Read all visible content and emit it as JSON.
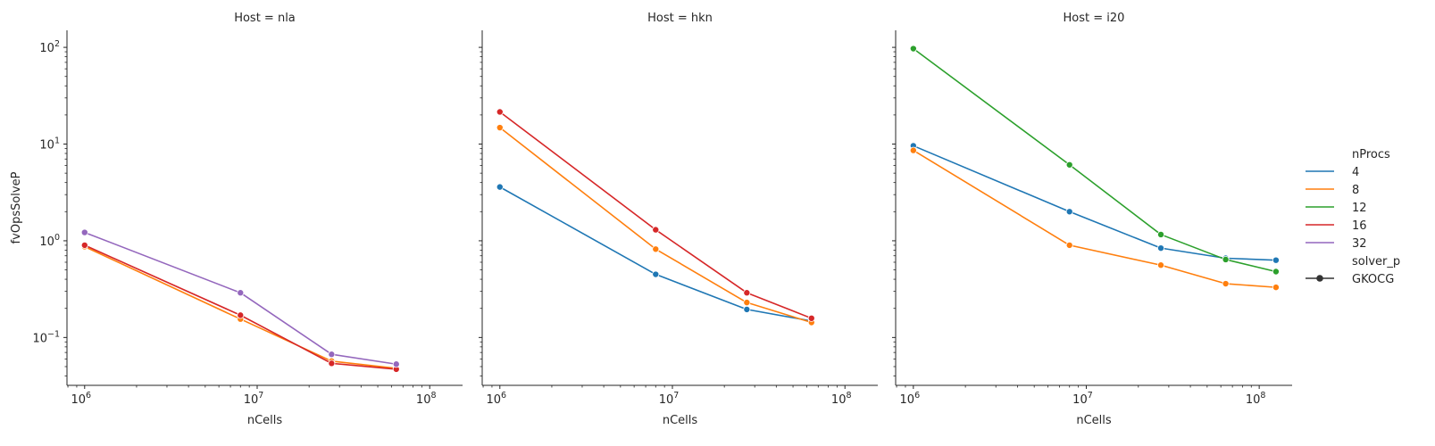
{
  "chart_data": {
    "type": "line",
    "x_scale": "log",
    "y_scale": "log",
    "xlabel": "nCells",
    "ylabel": "fvOpsSolveP",
    "xlim": [
      790000,
      155000000
    ],
    "ylim": [
      0.032,
      150
    ],
    "x_ticks": [
      {
        "value": 1000000,
        "base": "10",
        "exp": "6"
      },
      {
        "value": 10000000,
        "base": "10",
        "exp": "7"
      },
      {
        "value": 100000000,
        "base": "10",
        "exp": "8"
      }
    ],
    "y_ticks": [
      {
        "value": 0.1,
        "base": "10",
        "exp": "−1"
      },
      {
        "value": 1,
        "base": "10",
        "exp": "0"
      },
      {
        "value": 10,
        "base": "10",
        "exp": "1"
      },
      {
        "value": 100,
        "base": "10",
        "exp": "2"
      }
    ],
    "grid": false,
    "legend": {
      "position": "right",
      "hue_title": "nProcs",
      "entries": [
        {
          "label": "4",
          "color": "#1f77b4"
        },
        {
          "label": "8",
          "color": "#ff7f0e"
        },
        {
          "label": "12",
          "color": "#2ca02c"
        },
        {
          "label": "16",
          "color": "#d62728"
        },
        {
          "label": "32",
          "color": "#9467bd"
        }
      ],
      "style_title": "solver_p",
      "style_entries": [
        {
          "label": "GKOCG",
          "color": "#333333"
        }
      ]
    },
    "panels": [
      {
        "title": "Host = nla",
        "series": [
          {
            "name": "8",
            "color": "#ff7f0e",
            "x": [
              1000000,
              8000000,
              27000000,
              64000000
            ],
            "y": [
              0.87,
              0.155,
              0.057,
              0.048
            ]
          },
          {
            "name": "16",
            "color": "#d62728",
            "x": [
              1000000,
              8000000,
              27000000,
              64000000
            ],
            "y": [
              0.9,
              0.17,
              0.054,
              0.047
            ]
          },
          {
            "name": "32",
            "color": "#9467bd",
            "x": [
              1000000,
              8000000,
              27000000,
              64000000
            ],
            "y": [
              1.22,
              0.29,
              0.067,
              0.053
            ]
          }
        ]
      },
      {
        "title": "Host = hkn",
        "series": [
          {
            "name": "4",
            "color": "#1f77b4",
            "x": [
              1000000,
              8000000,
              27000000,
              64000000
            ],
            "y": [
              3.6,
              0.45,
              0.195,
              0.148
            ]
          },
          {
            "name": "8",
            "color": "#ff7f0e",
            "x": [
              1000000,
              8000000,
              27000000,
              64000000
            ],
            "y": [
              14.8,
              0.82,
              0.23,
              0.143
            ]
          },
          {
            "name": "16",
            "color": "#d62728",
            "x": [
              1000000,
              8000000,
              27000000,
              64000000
            ],
            "y": [
              21.5,
              1.3,
              0.29,
              0.158
            ]
          }
        ]
      },
      {
        "title": "Host = i20",
        "series": [
          {
            "name": "4",
            "color": "#1f77b4",
            "x": [
              1000000,
              8000000,
              27000000,
              64000000,
              125000000
            ],
            "y": [
              9.6,
              2.0,
              0.84,
              0.66,
              0.63
            ]
          },
          {
            "name": "8",
            "color": "#ff7f0e",
            "x": [
              1000000,
              8000000,
              27000000,
              64000000,
              125000000
            ],
            "y": [
              8.6,
              0.9,
              0.56,
              0.36,
              0.33
            ]
          },
          {
            "name": "12",
            "color": "#2ca02c",
            "x": [
              1000000,
              8000000,
              27000000,
              64000000,
              125000000
            ],
            "y": [
              97,
              6.1,
              1.16,
              0.64,
              0.48
            ]
          }
        ]
      }
    ]
  }
}
